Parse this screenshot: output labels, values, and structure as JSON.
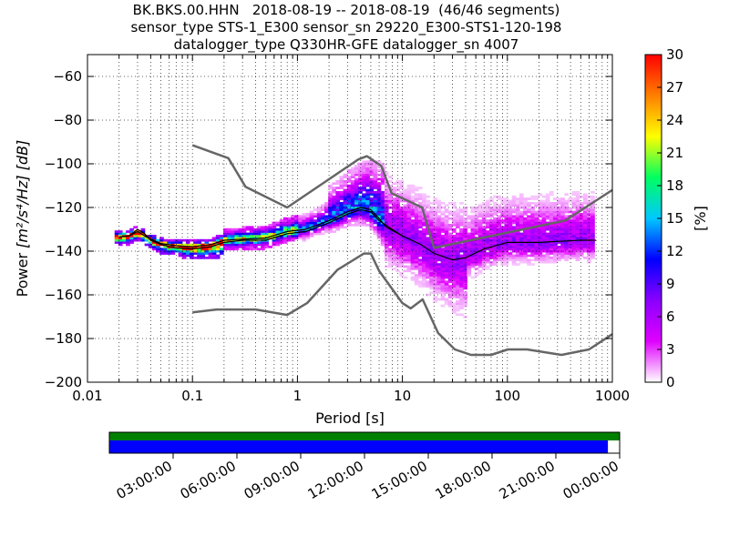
{
  "title_lines": [
    "BK.BKS.00.HHN   2018-08-19 -- 2018-08-19  (46/46 segments)",
    "sensor_type STS-1_E300 sensor_sn 29220_E300-STS1-120-198",
    "datalogger_type Q330HR-GFE datalogger_sn 4007"
  ],
  "chart_data": {
    "type": "heatmap",
    "xlabel": "Period [s]",
    "ylabel_prefix": "Power ",
    "ylabel_units": "[m²/s⁴/Hz] [dB]",
    "x_scale": "log",
    "xlim": [
      0.01,
      1000
    ],
    "ylim": [
      -200,
      -50
    ],
    "x_ticks": [
      0.01,
      0.1,
      1,
      10,
      100,
      1000
    ],
    "x_tick_labels": [
      "0.01",
      "0.1",
      "1",
      "10",
      "100",
      "1000"
    ],
    "y_ticks": [
      -200,
      -180,
      -160,
      -140,
      -120,
      -100,
      -80,
      -60
    ],
    "y_tick_labels": [
      "−200",
      "−180",
      "−160",
      "−140",
      "−120",
      "−100",
      "−80",
      "−60"
    ],
    "grid": true,
    "colorbar": {
      "label": "[%]",
      "range": [
        0,
        30
      ],
      "ticks": [
        0,
        3,
        6,
        9,
        12,
        15,
        18,
        21,
        24,
        27,
        30
      ],
      "tick_labels": [
        "0",
        "3",
        "6",
        "9",
        "12",
        "15",
        "18",
        "21",
        "24",
        "27",
        "30"
      ],
      "colormap": [
        "#ffffff",
        "#e000ff",
        "#8a00ff",
        "#0000ff",
        "#00c8ff",
        "#00ff60",
        "#ffff00",
        "#ff7f00",
        "#ff0000"
      ]
    },
    "noise_model_high": {
      "x": [
        0.1,
        0.22,
        0.32,
        0.8,
        3.8,
        4.6,
        6.3,
        7.9,
        15.4,
        20,
        354.8,
        1000
      ],
      "y": [
        -91.5,
        -97.4,
        -110.5,
        -120,
        -98,
        -96.5,
        -101,
        -113.5,
        -120,
        -138.5,
        -126,
        -112
      ]
    },
    "noise_model_low": {
      "x": [
        0.1,
        0.17,
        0.4,
        0.8,
        1.24,
        2.4,
        4.3,
        5,
        6,
        10,
        12,
        15.6,
        21.9,
        31.6,
        45,
        70,
        101,
        154,
        328,
        600,
        1000
      ],
      "y": [
        -168,
        -166.7,
        -166.7,
        -169.2,
        -163.7,
        -148.6,
        -141.1,
        -141.1,
        -149,
        -163.8,
        -166.2,
        -162.1,
        -177.5,
        -185,
        -187.5,
        -187.5,
        -185,
        -185,
        -187.5,
        -185,
        -178
      ]
    },
    "median_curve": {
      "x": [
        0.02,
        0.025,
        0.03,
        0.035,
        0.04,
        0.05,
        0.07,
        0.1,
        0.15,
        0.2,
        0.3,
        0.5,
        0.8,
        1.2,
        2,
        3,
        4,
        5,
        6,
        7,
        10,
        15,
        20,
        30,
        40,
        60,
        100,
        200,
        500,
        700
      ],
      "y": [
        -133.5,
        -133,
        -131,
        -133,
        -134.5,
        -136.5,
        -137.5,
        -138,
        -137,
        -135,
        -134.5,
        -134,
        -131,
        -130,
        -126,
        -122,
        -120,
        -121,
        -125,
        -129,
        -133,
        -137,
        -141,
        -144,
        -143,
        -139,
        -136,
        -136,
        -135,
        -135
      ]
    },
    "mode_curve": {
      "x": [
        0.02,
        0.025,
        0.03,
        0.035,
        0.04,
        0.05,
        0.07,
        0.1,
        0.15,
        0.2,
        0.3,
        0.5,
        0.8,
        1.2,
        2,
        3,
        4,
        5,
        6,
        8,
        10
      ],
      "y": [
        -133.5,
        -133,
        -130,
        -132,
        -135,
        -137,
        -138.5,
        -139,
        -138,
        -136,
        -135,
        -135,
        -132,
        -131,
        -127,
        -123,
        -121,
        -122,
        -126,
        -130,
        -133
      ]
    }
  },
  "timeline": {
    "time_labels": [
      "03:00:00",
      "06:00:00",
      "09:00:00",
      "12:00:00",
      "15:00:00",
      "18:00:00",
      "21:00:00",
      "00:00:00"
    ],
    "coverage_fraction": 1.0,
    "data_fraction": 0.977,
    "coverage_color": "#008000",
    "data_color": "#0000ff"
  }
}
